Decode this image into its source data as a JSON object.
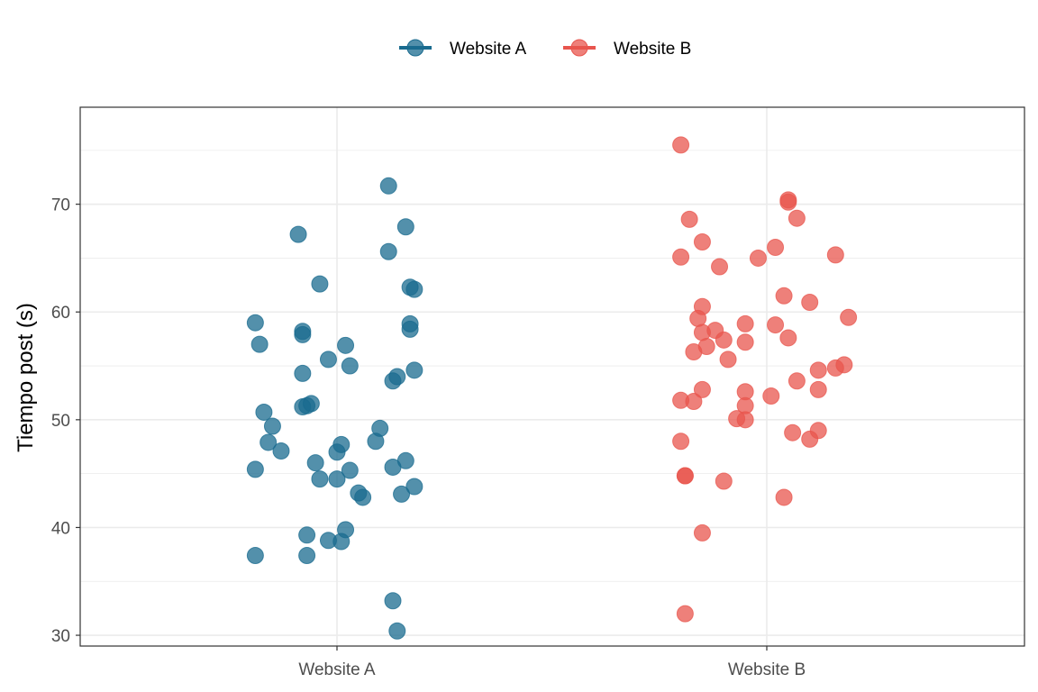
{
  "chart_data": {
    "type": "scatter",
    "ylabel": "Tiempo post (s)",
    "xlabel": "",
    "categories": [
      "Website A",
      "Website B"
    ],
    "ylim": [
      29,
      79
    ],
    "yticks": [
      30,
      40,
      50,
      60,
      70
    ],
    "grid": true,
    "legend_position": "top",
    "series": [
      {
        "name": "Website A",
        "color": "#1a6b8f",
        "points": [
          {
            "x": -0.19,
            "y": 59.0
          },
          {
            "x": -0.18,
            "y": 57.0
          },
          {
            "x": -0.17,
            "y": 50.7
          },
          {
            "x": -0.15,
            "y": 49.4
          },
          {
            "x": -0.16,
            "y": 47.9
          },
          {
            "x": -0.13,
            "y": 47.1
          },
          {
            "x": -0.19,
            "y": 45.4
          },
          {
            "x": -0.19,
            "y": 37.4
          },
          {
            "x": -0.09,
            "y": 67.2
          },
          {
            "x": -0.04,
            "y": 62.6
          },
          {
            "x": -0.08,
            "y": 58.2
          },
          {
            "x": -0.08,
            "y": 57.9
          },
          {
            "x": -0.08,
            "y": 54.3
          },
          {
            "x": -0.06,
            "y": 51.5
          },
          {
            "x": -0.08,
            "y": 51.2
          },
          {
            "x": -0.07,
            "y": 51.3
          },
          {
            "x": -0.05,
            "y": 46.0
          },
          {
            "x": -0.04,
            "y": 44.5
          },
          {
            "x": -0.07,
            "y": 39.3
          },
          {
            "x": -0.07,
            "y": 37.4
          },
          {
            "x": -0.02,
            "y": 55.6
          },
          {
            "x": 0.02,
            "y": 56.9
          },
          {
            "x": 0.03,
            "y": 55.0
          },
          {
            "x": 0.01,
            "y": 47.7
          },
          {
            "x": -0.0,
            "y": 47.0
          },
          {
            "x": 0.0,
            "y": 44.5
          },
          {
            "x": 0.03,
            "y": 45.3
          },
          {
            "x": 0.05,
            "y": 43.2
          },
          {
            "x": 0.06,
            "y": 42.8
          },
          {
            "x": 0.02,
            "y": 39.8
          },
          {
            "x": -0.02,
            "y": 38.8
          },
          {
            "x": 0.01,
            "y": 38.7
          },
          {
            "x": 0.12,
            "y": 71.7
          },
          {
            "x": 0.16,
            "y": 67.9
          },
          {
            "x": 0.12,
            "y": 65.6
          },
          {
            "x": 0.17,
            "y": 62.3
          },
          {
            "x": 0.18,
            "y": 62.1
          },
          {
            "x": 0.17,
            "y": 58.9
          },
          {
            "x": 0.17,
            "y": 58.4
          },
          {
            "x": 0.18,
            "y": 54.6
          },
          {
            "x": 0.14,
            "y": 54.0
          },
          {
            "x": 0.13,
            "y": 53.6
          },
          {
            "x": 0.1,
            "y": 49.2
          },
          {
            "x": 0.09,
            "y": 48.0
          },
          {
            "x": 0.16,
            "y": 46.2
          },
          {
            "x": 0.13,
            "y": 45.6
          },
          {
            "x": 0.15,
            "y": 43.1
          },
          {
            "x": 0.18,
            "y": 43.8
          },
          {
            "x": 0.13,
            "y": 33.2
          },
          {
            "x": 0.14,
            "y": 30.4
          }
        ]
      },
      {
        "name": "Website B",
        "color": "#e8554e",
        "points": [
          {
            "x": -0.2,
            "y": 75.5
          },
          {
            "x": -0.18,
            "y": 68.6
          },
          {
            "x": -0.15,
            "y": 66.5
          },
          {
            "x": -0.2,
            "y": 65.1
          },
          {
            "x": -0.11,
            "y": 64.2
          },
          {
            "x": -0.15,
            "y": 60.5
          },
          {
            "x": -0.16,
            "y": 59.4
          },
          {
            "x": -0.15,
            "y": 58.1
          },
          {
            "x": -0.12,
            "y": 58.3
          },
          {
            "x": -0.1,
            "y": 57.4
          },
          {
            "x": -0.17,
            "y": 56.3
          },
          {
            "x": -0.14,
            "y": 56.8
          },
          {
            "x": -0.09,
            "y": 55.6
          },
          {
            "x": -0.2,
            "y": 51.8
          },
          {
            "x": -0.17,
            "y": 51.7
          },
          {
            "x": -0.15,
            "y": 52.8
          },
          {
            "x": -0.2,
            "y": 48.0
          },
          {
            "x": -0.19,
            "y": 44.8
          },
          {
            "x": -0.19,
            "y": 44.8
          },
          {
            "x": -0.1,
            "y": 44.3
          },
          {
            "x": -0.15,
            "y": 39.5
          },
          {
            "x": -0.19,
            "y": 32.0
          },
          {
            "x": -0.02,
            "y": 65.0
          },
          {
            "x": 0.02,
            "y": 66.0
          },
          {
            "x": -0.05,
            "y": 57.2
          },
          {
            "x": -0.05,
            "y": 58.9
          },
          {
            "x": -0.05,
            "y": 52.6
          },
          {
            "x": -0.05,
            "y": 51.3
          },
          {
            "x": -0.07,
            "y": 50.1
          },
          {
            "x": -0.05,
            "y": 50.0
          },
          {
            "x": 0.01,
            "y": 52.2
          },
          {
            "x": 0.02,
            "y": 58.8
          },
          {
            "x": 0.04,
            "y": 61.5
          },
          {
            "x": 0.05,
            "y": 57.6
          },
          {
            "x": 0.05,
            "y": 70.2
          },
          {
            "x": 0.05,
            "y": 70.4
          },
          {
            "x": 0.07,
            "y": 68.7
          },
          {
            "x": 0.07,
            "y": 53.6
          },
          {
            "x": 0.06,
            "y": 48.8
          },
          {
            "x": 0.04,
            "y": 42.8
          },
          {
            "x": 0.1,
            "y": 60.9
          },
          {
            "x": 0.1,
            "y": 48.2
          },
          {
            "x": 0.12,
            "y": 49.0
          },
          {
            "x": 0.12,
            "y": 54.6
          },
          {
            "x": 0.12,
            "y": 52.8
          },
          {
            "x": 0.16,
            "y": 65.3
          },
          {
            "x": 0.16,
            "y": 54.8
          },
          {
            "x": 0.18,
            "y": 55.1
          },
          {
            "x": 0.19,
            "y": 59.5
          }
        ]
      }
    ]
  }
}
